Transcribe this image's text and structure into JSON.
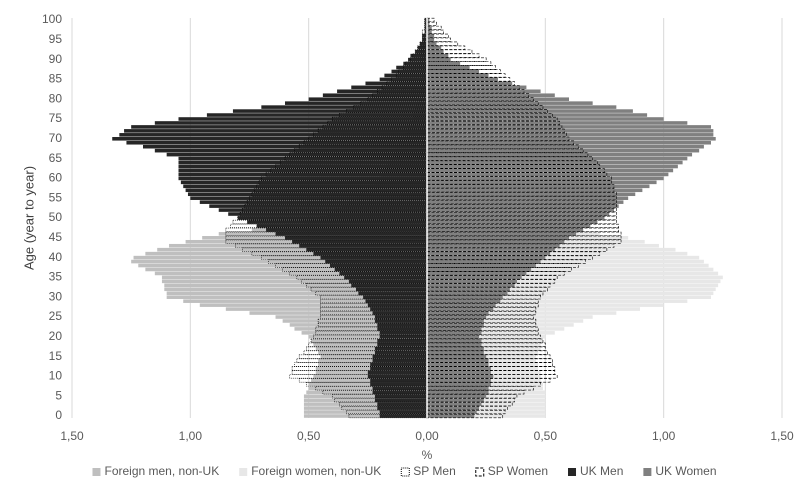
{
  "chart_data": {
    "type": "pyramid",
    "x_label": "%",
    "y_label": "Age (year to year)",
    "xlim": [
      -1.5,
      1.5
    ],
    "xticks": [
      {
        "value": -1.5,
        "label": "1,50"
      },
      {
        "value": -1,
        "label": "1,00"
      },
      {
        "value": -0.5,
        "label": "0,50"
      },
      {
        "value": 0,
        "label": "0,00"
      },
      {
        "value": 0.5,
        "label": "0,50"
      },
      {
        "value": 1,
        "label": "1,00"
      },
      {
        "value": 1.5,
        "label": "1,50"
      }
    ],
    "grid": true,
    "legend": "bottom",
    "categories": [
      "0",
      null,
      null,
      null,
      null,
      "5",
      null,
      null,
      null,
      null,
      "10",
      null,
      null,
      null,
      null,
      "15",
      null,
      null,
      null,
      null,
      "20",
      null,
      null,
      null,
      null,
      "25",
      null,
      null,
      null,
      null,
      "30",
      null,
      null,
      null,
      null,
      "35",
      null,
      null,
      null,
      null,
      "40",
      null,
      null,
      null,
      null,
      "45",
      null,
      null,
      null,
      null,
      "50",
      null,
      null,
      null,
      null,
      "55",
      null,
      null,
      null,
      null,
      "60",
      null,
      null,
      null,
      null,
      "65",
      null,
      null,
      null,
      null,
      "70",
      null,
      null,
      null,
      null,
      "75",
      null,
      null,
      null,
      null,
      "80",
      null,
      null,
      null,
      null,
      "85",
      null,
      null,
      null,
      null,
      "90",
      null,
      null,
      null,
      null,
      "95",
      null,
      null,
      null,
      null,
      "100"
    ],
    "series": [
      {
        "name": "Foreign men, non-UK",
        "color": "#bfbfbf",
        "style": "solid",
        "values": [
          -0.52,
          -0.52,
          -0.52,
          -0.52,
          -0.52,
          -0.52,
          -0.51,
          -0.5,
          -0.5,
          -0.49,
          -0.48,
          -0.47,
          -0.47,
          -0.46,
          -0.46,
          -0.45,
          -0.46,
          -0.47,
          -0.48,
          -0.49,
          -0.5,
          -0.53,
          -0.56,
          -0.58,
          -0.61,
          -0.64,
          -0.75,
          -0.85,
          -0.96,
          -1.03,
          -1.1,
          -1.1,
          -1.11,
          -1.11,
          -1.12,
          -1.12,
          -1.15,
          -1.19,
          -1.22,
          -1.25,
          -1.24,
          -1.19,
          -1.14,
          -1.09,
          -1.02,
          -0.95,
          -0.88,
          -0.74,
          -0.6,
          -0.52,
          -0.45,
          -0.42,
          -0.39,
          -0.36,
          -0.33,
          -0.3,
          -0.28,
          -0.26,
          -0.24,
          -0.22,
          -0.2,
          -0.19,
          -0.18,
          -0.17,
          -0.16,
          -0.15,
          -0.14,
          -0.13,
          -0.12,
          -0.11,
          -0.1,
          -0.09,
          -0.08,
          -0.08,
          -0.07,
          -0.06,
          -0.06,
          -0.05,
          -0.05,
          -0.04,
          -0.04,
          -0.04,
          -0.03,
          -0.03,
          -0.02,
          -0.02,
          -0.02,
          -0.02,
          -0.01,
          -0.01,
          -0.01,
          -0.01,
          -0.01,
          0,
          0,
          0,
          0,
          0,
          0,
          0,
          0
        ]
      },
      {
        "name": "Foreign women, non-UK",
        "color": "#e7e7e7",
        "style": "solid",
        "values": [
          0.5,
          0.5,
          0.5,
          0.5,
          0.5,
          0.5,
          0.5,
          0.49,
          0.49,
          0.48,
          0.48,
          0.48,
          0.47,
          0.47,
          0.46,
          0.46,
          0.47,
          0.48,
          0.48,
          0.49,
          0.5,
          0.54,
          0.58,
          0.62,
          0.66,
          0.7,
          0.8,
          0.9,
          1.0,
          1.1,
          1.2,
          1.21,
          1.22,
          1.23,
          1.24,
          1.25,
          1.23,
          1.21,
          1.19,
          1.17,
          1.15,
          1.1,
          1.05,
          0.98,
          0.92,
          0.85,
          0.73,
          0.62,
          0.5,
          0.45,
          0.4,
          0.38,
          0.36,
          0.34,
          0.32,
          0.3,
          0.28,
          0.26,
          0.24,
          0.22,
          0.2,
          0.19,
          0.18,
          0.17,
          0.16,
          0.15,
          0.14,
          0.13,
          0.12,
          0.11,
          0.1,
          0.09,
          0.09,
          0.08,
          0.08,
          0.07,
          0.07,
          0.06,
          0.06,
          0.05,
          0.05,
          0.05,
          0.04,
          0.04,
          0.03,
          0.03,
          0.03,
          0.02,
          0.02,
          0.02,
          0.02,
          0.02,
          0.01,
          0.01,
          0.01,
          0.01,
          0.01,
          0,
          0,
          0,
          0
        ]
      },
      {
        "name": "SP Men",
        "color": "#000000",
        "style": "dotted",
        "values": [
          -0.33,
          -0.34,
          -0.36,
          -0.37,
          -0.39,
          -0.4,
          -0.44,
          -0.47,
          -0.51,
          -0.54,
          -0.58,
          -0.57,
          -0.57,
          -0.56,
          -0.55,
          -0.54,
          -0.52,
          -0.51,
          -0.5,
          -0.49,
          -0.48,
          -0.47,
          -0.47,
          -0.46,
          -0.46,
          -0.45,
          -0.45,
          -0.45,
          -0.45,
          -0.45,
          -0.45,
          -0.47,
          -0.49,
          -0.51,
          -0.53,
          -0.55,
          -0.58,
          -0.61,
          -0.64,
          -0.67,
          -0.7,
          -0.74,
          -0.78,
          -0.81,
          -0.85,
          -0.85,
          -0.85,
          -0.85,
          -0.83,
          -0.82,
          -0.8,
          -0.79,
          -0.78,
          -0.77,
          -0.76,
          -0.75,
          -0.74,
          -0.73,
          -0.72,
          -0.71,
          -0.7,
          -0.68,
          -0.66,
          -0.64,
          -0.62,
          -0.6,
          -0.58,
          -0.56,
          -0.54,
          -0.52,
          -0.5,
          -0.48,
          -0.46,
          -0.44,
          -0.42,
          -0.4,
          -0.37,
          -0.34,
          -0.31,
          -0.28,
          -0.25,
          -0.23,
          -0.21,
          -0.19,
          -0.17,
          -0.15,
          -0.13,
          -0.12,
          -0.1,
          -0.09,
          -0.07,
          -0.06,
          -0.05,
          -0.04,
          -0.03,
          -0.02,
          -0.02,
          -0.02,
          -0.01,
          -0.01,
          -0.01
        ]
      },
      {
        "name": "SP Women",
        "color": "#000000",
        "style": "dashed",
        "values": [
          0.32,
          0.33,
          0.34,
          0.36,
          0.37,
          0.38,
          0.41,
          0.45,
          0.48,
          0.52,
          0.55,
          0.54,
          0.54,
          0.53,
          0.53,
          0.52,
          0.51,
          0.5,
          0.5,
          0.49,
          0.48,
          0.47,
          0.47,
          0.46,
          0.46,
          0.45,
          0.46,
          0.46,
          0.47,
          0.47,
          0.48,
          0.49,
          0.51,
          0.52,
          0.54,
          0.55,
          0.58,
          0.61,
          0.64,
          0.67,
          0.7,
          0.73,
          0.76,
          0.79,
          0.82,
          0.82,
          0.82,
          0.81,
          0.81,
          0.8,
          0.8,
          0.8,
          0.8,
          0.8,
          0.8,
          0.8,
          0.8,
          0.79,
          0.79,
          0.78,
          0.78,
          0.76,
          0.75,
          0.73,
          0.72,
          0.7,
          0.68,
          0.66,
          0.64,
          0.62,
          0.6,
          0.59,
          0.58,
          0.57,
          0.56,
          0.55,
          0.53,
          0.51,
          0.49,
          0.47,
          0.45,
          0.43,
          0.41,
          0.39,
          0.37,
          0.35,
          0.33,
          0.31,
          0.29,
          0.27,
          0.25,
          0.22,
          0.19,
          0.16,
          0.13,
          0.1,
          0.09,
          0.07,
          0.06,
          0.04,
          0.03
        ]
      },
      {
        "name": "UK Men",
        "color": "#262626",
        "style": "solid",
        "values": [
          -0.2,
          -0.2,
          -0.21,
          -0.21,
          -0.22,
          -0.22,
          -0.23,
          -0.23,
          -0.24,
          -0.24,
          -0.25,
          -0.25,
          -0.24,
          -0.24,
          -0.23,
          -0.23,
          -0.22,
          -0.22,
          -0.21,
          -0.21,
          -0.2,
          -0.2,
          -0.21,
          -0.21,
          -0.22,
          -0.22,
          -0.23,
          -0.24,
          -0.25,
          -0.26,
          -0.27,
          -0.29,
          -0.3,
          -0.32,
          -0.33,
          -0.35,
          -0.37,
          -0.39,
          -0.41,
          -0.43,
          -0.45,
          -0.48,
          -0.51,
          -0.54,
          -0.57,
          -0.6,
          -0.64,
          -0.68,
          -0.72,
          -0.76,
          -0.8,
          -0.84,
          -0.88,
          -0.92,
          -0.96,
          -1.0,
          -1.01,
          -1.02,
          -1.03,
          -1.04,
          -1.05,
          -1.05,
          -1.05,
          -1.05,
          -1.05,
          -1.05,
          -1.1,
          -1.15,
          -1.2,
          -1.27,
          -1.33,
          -1.3,
          -1.28,
          -1.25,
          -1.15,
          -1.05,
          -0.93,
          -0.82,
          -0.7,
          -0.6,
          -0.5,
          -0.44,
          -0.38,
          -0.32,
          -0.26,
          -0.2,
          -0.18,
          -0.15,
          -0.13,
          -0.1,
          -0.08,
          -0.07,
          -0.05,
          -0.04,
          -0.03,
          -0.02,
          -0.02,
          -0.01,
          -0.01,
          -0.01,
          -0.01
        ]
      },
      {
        "name": "UK Women",
        "color": "#808080",
        "style": "solid",
        "values": [
          0.2,
          0.21,
          0.22,
          0.23,
          0.24,
          0.25,
          0.26,
          0.26,
          0.27,
          0.27,
          0.28,
          0.27,
          0.27,
          0.26,
          0.26,
          0.25,
          0.24,
          0.24,
          0.23,
          0.23,
          0.22,
          0.23,
          0.23,
          0.24,
          0.24,
          0.25,
          0.26,
          0.28,
          0.29,
          0.31,
          0.32,
          0.34,
          0.35,
          0.37,
          0.38,
          0.4,
          0.42,
          0.44,
          0.46,
          0.48,
          0.5,
          0.52,
          0.54,
          0.56,
          0.58,
          0.6,
          0.63,
          0.66,
          0.69,
          0.72,
          0.75,
          0.77,
          0.79,
          0.81,
          0.83,
          0.85,
          0.88,
          0.91,
          0.94,
          0.97,
          1.0,
          1.02,
          1.04,
          1.06,
          1.08,
          1.1,
          1.12,
          1.15,
          1.17,
          1.2,
          1.22,
          1.21,
          1.21,
          1.2,
          1.1,
          1.0,
          0.93,
          0.87,
          0.8,
          0.7,
          0.6,
          0.54,
          0.48,
          0.42,
          0.36,
          0.3,
          0.26,
          0.22,
          0.18,
          0.14,
          0.1,
          0.09,
          0.07,
          0.06,
          0.04,
          0.03,
          0.03,
          0.02,
          0.02,
          0.01,
          0.01
        ]
      }
    ]
  }
}
